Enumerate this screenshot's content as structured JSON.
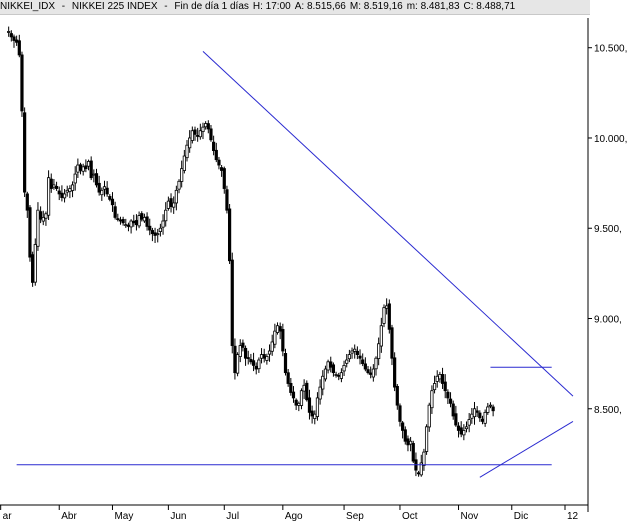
{
  "header": {
    "symbol": "NIKKEI_IDX",
    "sep1": " - ",
    "name": "NIKKEI 225 INDEX",
    "sep2": " - ",
    "period": "Fin de día 1 días",
    "high_label": "H: 17:00",
    "open_label": "A: 8.515,66",
    "max_label": "M: 8.519,16",
    "min_label": "m: 8.481,83",
    "close_label": "C: 8.488,71"
  },
  "colors": {
    "trendline": "#2a2ad0",
    "candle": "#000000",
    "background": "#ffffff",
    "header_bg": "#e6e6e6"
  },
  "chart_data": {
    "type": "candlestick",
    "title": "",
    "xlabel": "",
    "ylabel": "",
    "ylim": [
      8050,
      10720
    ],
    "y_ticks": [
      {
        "value": 10500,
        "label": "10.500,"
      },
      {
        "value": 10000,
        "label": "10.000,"
      },
      {
        "value": 9500,
        "label": "9.500,"
      },
      {
        "value": 9000,
        "label": "9.000,"
      },
      {
        "value": 8500,
        "label": "8.500,"
      }
    ],
    "x_ticks": [
      {
        "day": -2,
        "label": "ar"
      },
      {
        "day": 20,
        "label": "Abr"
      },
      {
        "day": 40,
        "label": "May"
      },
      {
        "day": 61,
        "label": "Jun"
      },
      {
        "day": 82,
        "label": "Jul"
      },
      {
        "day": 104,
        "label": "Ago"
      },
      {
        "day": 127,
        "label": "Sep"
      },
      {
        "day": 148,
        "label": "Oct"
      },
      {
        "day": 170,
        "label": "Nov"
      },
      {
        "day": 190,
        "label": "Dic"
      },
      {
        "day": 210,
        "label": "12"
      }
    ],
    "x_range": [
      0,
      228
    ],
    "trendlines": [
      {
        "name": "resistance-upper",
        "from": {
          "day": 74,
          "value": 10480
        },
        "to": {
          "day": 213,
          "value": 8570
        }
      },
      {
        "name": "resistance-horizontal",
        "from": {
          "day": 182,
          "value": 8730
        },
        "to": {
          "day": 205,
          "value": 8730
        }
      },
      {
        "name": "support-rising",
        "from": {
          "day": 178,
          "value": 8120
        },
        "to": {
          "day": 213,
          "value": 8430
        }
      },
      {
        "name": "support-horizontal",
        "from": {
          "day": 4,
          "value": 8190
        },
        "to": {
          "day": 205,
          "value": 8190
        }
      }
    ],
    "closes": [
      10590,
      10560,
      10540,
      10530,
      10460,
      10150,
      9700,
      9600,
      9340,
      9200,
      9410,
      9600,
      9550,
      9560,
      9580,
      9780,
      9720,
      9740,
      9720,
      9690,
      9670,
      9690,
      9710,
      9720,
      9740,
      9800,
      9850,
      9820,
      9840,
      9830,
      9870,
      9780,
      9800,
      9740,
      9700,
      9710,
      9730,
      9690,
      9660,
      9630,
      9560,
      9550,
      9540,
      9530,
      9520,
      9510,
      9540,
      9530,
      9520,
      9570,
      9550,
      9560,
      9510,
      9490,
      9470,
      9460,
      9470,
      9500,
      9540,
      9600,
      9650,
      9620,
      9640,
      9710,
      9760,
      9830,
      9900,
      9960,
      10000,
      10040,
      10020,
      10010,
      10040,
      10060,
      10080,
      10050,
      9990,
      9930,
      9880,
      9850,
      9820,
      9720,
      9600,
      9320,
      8850,
      8700,
      8800,
      8850,
      8840,
      8780,
      8780,
      8760,
      8740,
      8720,
      8770,
      8800,
      8780,
      8790,
      8820,
      8870,
      8930,
      8960,
      8930,
      8820,
      8700,
      8640,
      8590,
      8560,
      8520,
      8530,
      8600,
      8630,
      8550,
      8480,
      8460,
      8470,
      8560,
      8620,
      8680,
      8720,
      8760,
      8730,
      8700,
      8690,
      8680,
      8700,
      8740,
      8770,
      8800,
      8820,
      8830,
      8800,
      8780,
      8750,
      8720,
      8700,
      8690,
      8720,
      8780,
      8860,
      8960,
      9060,
      9070,
      8940,
      8780,
      8620,
      8520,
      8430,
      8380,
      8320,
      8300,
      8320,
      8210,
      8160,
      8140,
      8200,
      8260,
      8400,
      8520,
      8600,
      8640,
      8680,
      8690,
      8640,
      8600,
      8560,
      8530,
      8460,
      8410,
      8380,
      8360,
      8380,
      8400,
      8440,
      8470,
      8500,
      8480,
      8450,
      8430,
      8480,
      8510,
      8520,
      8489
    ]
  }
}
